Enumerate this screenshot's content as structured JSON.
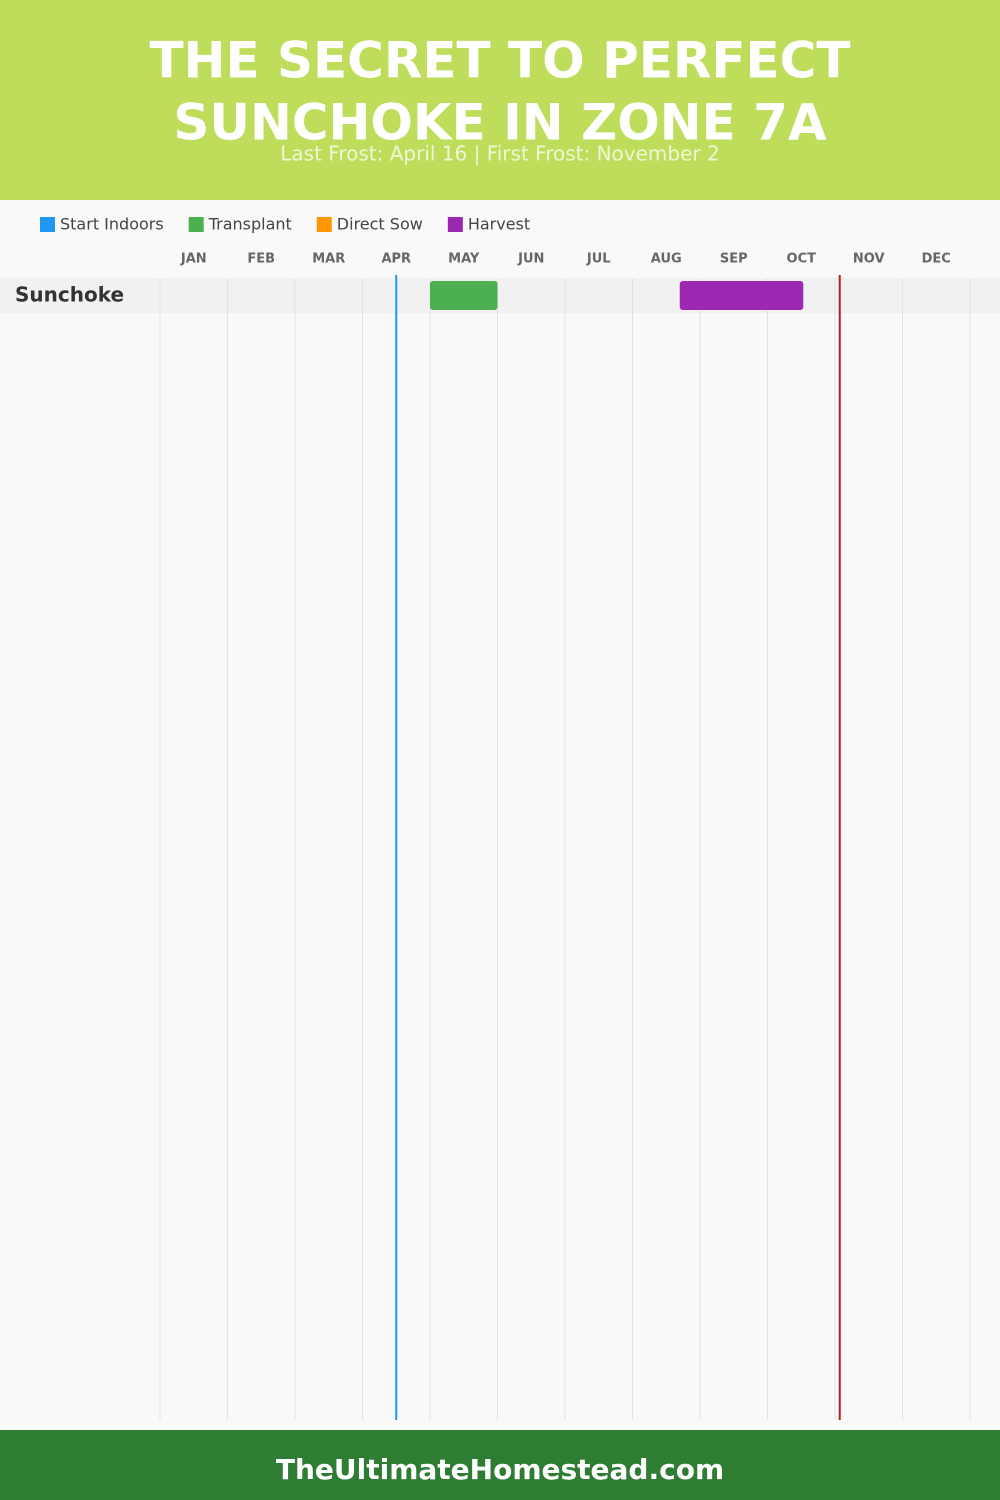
{
  "chart_data": {
    "type": "gantt",
    "title": [
      "THE SECRET TO PERFECT",
      "SUNCHOKE IN ZONE 7A"
    ],
    "subtitle": "Last Frost: April 16 | First Frost: November 2",
    "categories": [
      "JAN",
      "FEB",
      "MAR",
      "APR",
      "MAY",
      "JUN",
      "JUL",
      "AUG",
      "SEP",
      "OCT",
      "NOV",
      "DEC"
    ],
    "xlim": [
      0,
      12
    ],
    "rows": [
      "Sunchoke"
    ],
    "series": [
      {
        "name": "Start Indoors",
        "color": "#2196f3",
        "ranges": []
      },
      {
        "name": "Transplant",
        "color": "#4caf50",
        "ranges": [
          [
            4,
            5
          ]
        ]
      },
      {
        "name": "Direct Sow",
        "color": "#ff9800",
        "ranges": []
      },
      {
        "name": "Harvest",
        "color": "#9c27b0",
        "ranges": [
          [
            7.7,
            9.53
          ]
        ]
      }
    ],
    "frost_lines": [
      {
        "value": 3.5,
        "color": "#2196f3"
      },
      {
        "value": 10.07,
        "color": "#b71c1c"
      }
    ],
    "footer": "TheUltimateHomestead.com"
  }
}
